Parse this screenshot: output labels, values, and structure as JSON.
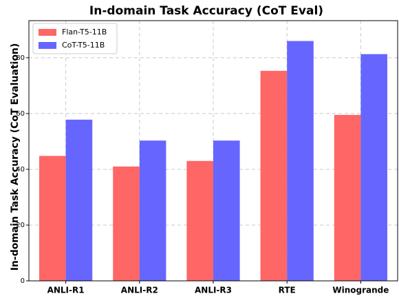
{
  "chart_data": {
    "type": "bar",
    "title": "In-domain Task Accuracy (CoT Eval)",
    "y_label": "In-domain Task Accuracy (CoT Evaluation)",
    "categories": [
      "ANLI-R1",
      "ANLI-R2",
      "ANLI-R3",
      "RTE",
      "Winogrande"
    ],
    "series": [
      {
        "name": "Flan-T5-11B",
        "color": "#ff6666",
        "values": [
          44.8,
          41,
          43,
          75.3,
          59.5
        ]
      },
      {
        "name": "CoT-T5-11B",
        "color": "#6666ff",
        "values": [
          57.8,
          50.3,
          50.3,
          86,
          81.3
        ]
      }
    ],
    "ylim": [
      0,
      93.3
    ],
    "yticks": [
      0,
      20,
      40,
      60,
      80
    ],
    "grid": true,
    "legend": "upper left"
  }
}
